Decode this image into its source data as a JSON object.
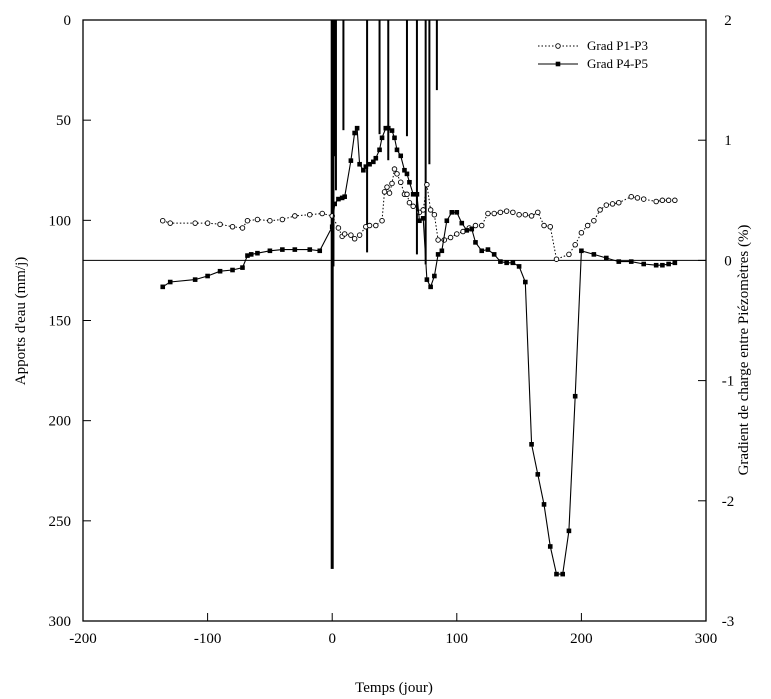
{
  "chart_data": {
    "type": "line",
    "xlabel": "Temps (jour)",
    "ylabel_left": "Apports d'eau (mm/j)",
    "ylabel_right": "Gradient de charge entre Piézomètres (%)",
    "xlim": [
      -200,
      300
    ],
    "ylim_left": [
      0,
      300
    ],
    "ylim_left_inverted": true,
    "ylim_right": [
      -3,
      2
    ],
    "x_ticks": [
      -200,
      -100,
      0,
      100,
      200,
      300
    ],
    "x_tick_labels": [
      "-200",
      "-100",
      "0",
      "100",
      "200",
      "300"
    ],
    "y_left_ticks": [
      0,
      50,
      100,
      150,
      200,
      250,
      300
    ],
    "y_left_tick_labels": [
      "0",
      "50",
      "100",
      "150",
      "200",
      "250",
      "300"
    ],
    "y_right_ticks": [
      2,
      1,
      0,
      -1,
      -2,
      -3
    ],
    "y_right_tick_labels": [
      "2",
      "1",
      "0",
      "-1",
      "-2",
      "-3"
    ],
    "zero_line_right": 0,
    "legend_position": "top-right",
    "water_inputs": {
      "axis": "left",
      "unit": "mm/j",
      "bars": [
        {
          "x": 0,
          "value": 274
        },
        {
          "x": 1,
          "value": 123
        },
        {
          "x": 2,
          "value": 68
        },
        {
          "x": 3,
          "value": 85
        },
        {
          "x": 9,
          "value": 55
        },
        {
          "x": 28,
          "value": 116
        },
        {
          "x": 38,
          "value": 57
        },
        {
          "x": 45,
          "value": 70
        },
        {
          "x": 60,
          "value": 58
        },
        {
          "x": 68,
          "value": 117
        },
        {
          "x": 75,
          "value": 122
        },
        {
          "x": 78,
          "value": 72
        },
        {
          "x": 84,
          "value": 35
        }
      ]
    },
    "series": [
      {
        "name": "Grad P1-P3",
        "axis": "right",
        "style": "dotted-open-circle",
        "points": [
          [
            -136,
            0.33
          ],
          [
            -130,
            0.31
          ],
          [
            -110,
            0.31
          ],
          [
            -100,
            0.31
          ],
          [
            -90,
            0.3
          ],
          [
            -80,
            0.28
          ],
          [
            -72,
            0.27
          ],
          [
            -68,
            0.33
          ],
          [
            -60,
            0.34
          ],
          [
            -50,
            0.33
          ],
          [
            -40,
            0.34
          ],
          [
            -30,
            0.37
          ],
          [
            -18,
            0.38
          ],
          [
            -8,
            0.39
          ],
          [
            0,
            0.37
          ],
          [
            5,
            0.27
          ],
          [
            8,
            0.2
          ],
          [
            10,
            0.22
          ],
          [
            15,
            0.21
          ],
          [
            18,
            0.18
          ],
          [
            22,
            0.21
          ],
          [
            27,
            0.28
          ],
          [
            30,
            0.29
          ],
          [
            35,
            0.29
          ],
          [
            40,
            0.33
          ],
          [
            42,
            0.57
          ],
          [
            44,
            0.61
          ],
          [
            46,
            0.56
          ],
          [
            48,
            0.64
          ],
          [
            50,
            0.76
          ],
          [
            52,
            0.72
          ],
          [
            55,
            0.65
          ],
          [
            58,
            0.55
          ],
          [
            60,
            0.55
          ],
          [
            62,
            0.48
          ],
          [
            65,
            0.45
          ],
          [
            70,
            0.4
          ],
          [
            73,
            0.42
          ],
          [
            76,
            0.63
          ],
          [
            79,
            0.42
          ],
          [
            82,
            0.38
          ],
          [
            85,
            0.17
          ],
          [
            90,
            0.17
          ],
          [
            95,
            0.19
          ],
          [
            100,
            0.22
          ],
          [
            105,
            0.24
          ],
          [
            110,
            0.27
          ],
          [
            115,
            0.29
          ],
          [
            120,
            0.29
          ],
          [
            125,
            0.39
          ],
          [
            130,
            0.39
          ],
          [
            135,
            0.4
          ],
          [
            140,
            0.41
          ],
          [
            145,
            0.4
          ],
          [
            150,
            0.38
          ],
          [
            155,
            0.38
          ],
          [
            160,
            0.37
          ],
          [
            165,
            0.4
          ],
          [
            170,
            0.29
          ],
          [
            175,
            0.28
          ],
          [
            180,
            0.01
          ],
          [
            190,
            0.05
          ],
          [
            195,
            0.13
          ],
          [
            200,
            0.23
          ],
          [
            205,
            0.29
          ],
          [
            210,
            0.33
          ],
          [
            215,
            0.42
          ],
          [
            220,
            0.46
          ],
          [
            225,
            0.47
          ],
          [
            230,
            0.48
          ],
          [
            240,
            0.53
          ],
          [
            245,
            0.52
          ],
          [
            250,
            0.51
          ],
          [
            260,
            0.49
          ],
          [
            265,
            0.5
          ],
          [
            270,
            0.5
          ],
          [
            275,
            0.5
          ]
        ]
      },
      {
        "name": "Grad P4-P5",
        "axis": "right",
        "style": "solid-filled-square",
        "points": [
          [
            -136,
            -0.22
          ],
          [
            -130,
            -0.18
          ],
          [
            -110,
            -0.16
          ],
          [
            -100,
            -0.13
          ],
          [
            -90,
            -0.09
          ],
          [
            -80,
            -0.08
          ],
          [
            -72,
            -0.06
          ],
          [
            -68,
            0.04
          ],
          [
            -65,
            0.05
          ],
          [
            -60,
            0.06
          ],
          [
            -50,
            0.08
          ],
          [
            -40,
            0.09
          ],
          [
            -30,
            0.09
          ],
          [
            -18,
            0.09
          ],
          [
            -10,
            0.08
          ],
          [
            0,
            0.28
          ],
          [
            2,
            0.47
          ],
          [
            5,
            0.51
          ],
          [
            8,
            0.52
          ],
          [
            10,
            0.53
          ],
          [
            15,
            0.83
          ],
          [
            18,
            1.06
          ],
          [
            20,
            1.1
          ],
          [
            22,
            0.8
          ],
          [
            25,
            0.75
          ],
          [
            27,
            0.78
          ],
          [
            30,
            0.8
          ],
          [
            33,
            0.82
          ],
          [
            35,
            0.85
          ],
          [
            38,
            0.92
          ],
          [
            40,
            1.02
          ],
          [
            43,
            1.1
          ],
          [
            45,
            1.1
          ],
          [
            48,
            1.08
          ],
          [
            50,
            1.02
          ],
          [
            52,
            0.92
          ],
          [
            55,
            0.87
          ],
          [
            58,
            0.75
          ],
          [
            60,
            0.72
          ],
          [
            62,
            0.65
          ],
          [
            65,
            0.55
          ],
          [
            68,
            0.55
          ],
          [
            70,
            0.33
          ],
          [
            73,
            0.35
          ],
          [
            76,
            -0.16
          ],
          [
            79,
            -0.22
          ],
          [
            82,
            -0.13
          ],
          [
            85,
            0.05
          ],
          [
            88,
            0.08
          ],
          [
            92,
            0.33
          ],
          [
            96,
            0.4
          ],
          [
            100,
            0.4
          ],
          [
            104,
            0.31
          ],
          [
            108,
            0.25
          ],
          [
            112,
            0.26
          ],
          [
            115,
            0.15
          ],
          [
            120,
            0.08
          ],
          [
            125,
            0.09
          ],
          [
            130,
            0.05
          ],
          [
            135,
            -0.01
          ],
          [
            140,
            -0.02
          ],
          [
            145,
            -0.02
          ],
          [
            150,
            -0.05
          ],
          [
            155,
            -0.18
          ],
          [
            160,
            -1.53
          ],
          [
            165,
            -1.78
          ],
          [
            170,
            -2.03
          ],
          [
            175,
            -2.38
          ],
          [
            180,
            -2.61
          ],
          [
            185,
            -2.61
          ],
          [
            190,
            -2.25
          ],
          [
            195,
            -1.13
          ],
          [
            200,
            0.08
          ],
          [
            210,
            0.05
          ],
          [
            220,
            0.02
          ],
          [
            230,
            -0.01
          ],
          [
            240,
            -0.01
          ],
          [
            250,
            -0.03
          ],
          [
            260,
            -0.04
          ],
          [
            265,
            -0.04
          ],
          [
            270,
            -0.03
          ],
          [
            275,
            -0.02
          ]
        ]
      }
    ]
  }
}
